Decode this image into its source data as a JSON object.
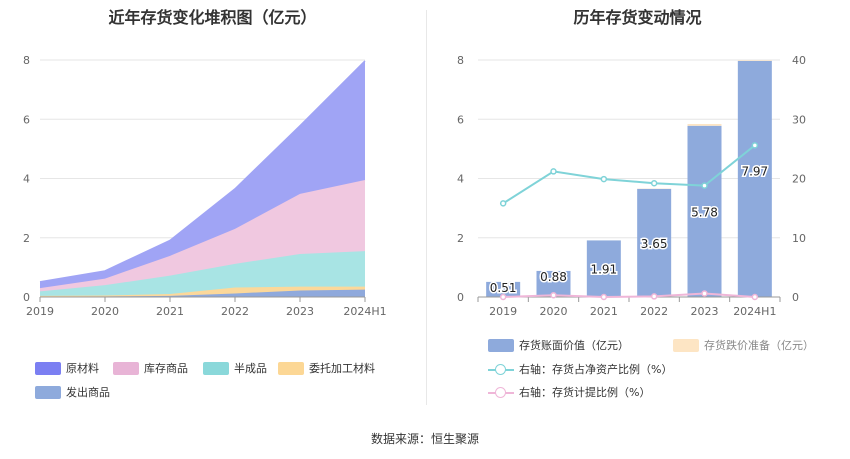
{
  "source_text": "数据来源：恒生聚源",
  "chart_data": [
    {
      "type": "area",
      "title": "近年存货变化堆积图（亿元）",
      "stacked": true,
      "categories": [
        "2019",
        "2020",
        "2021",
        "2022",
        "2023",
        "2024H1"
      ],
      "yticks": [
        "0",
        "2",
        "4",
        "6",
        "8"
      ],
      "ylim": [
        0,
        8
      ],
      "legend_position": "bottom",
      "series": [
        {
          "name": "发出商品",
          "color": "#8fa9dc",
          "values": [
            0.02,
            0.02,
            0.04,
            0.12,
            0.22,
            0.25
          ]
        },
        {
          "name": "委托加工材料",
          "color": "#fcd89a",
          "values": [
            0.02,
            0.03,
            0.06,
            0.2,
            0.13,
            0.1
          ]
        },
        {
          "name": "半成品",
          "color": "#a8e4e4",
          "values": [
            0.15,
            0.35,
            0.62,
            0.8,
            1.1,
            1.2
          ]
        },
        {
          "name": "库存商品",
          "color": "#f0c8e0",
          "values": [
            0.11,
            0.22,
            0.67,
            1.18,
            2.03,
            2.4
          ]
        },
        {
          "name": "原材料",
          "color": "#a0a4f5",
          "values": [
            0.21,
            0.26,
            0.52,
            1.35,
            2.3,
            4.02
          ]
        }
      ],
      "legend_colors": {
        "原材料": "#7b7ff2",
        "库存商品": "#e8b4d6",
        "半成品": "#8ad8da",
        "委托加工材料": "#fcd795",
        "发出商品": "#8eaadc"
      }
    },
    {
      "type": "bar+line",
      "title": "历年存货变动情况",
      "categories": [
        "2019",
        "2020",
        "2021",
        "2022",
        "2023",
        "2024H1"
      ],
      "yticks_left": [
        "0",
        "2",
        "4",
        "6",
        "8"
      ],
      "ylim_left": [
        0,
        8
      ],
      "yticks_right": [
        "0",
        "10",
        "20",
        "30",
        "40"
      ],
      "ylim_right": [
        0,
        40
      ],
      "bars": [
        {
          "name": "存货账面价值（亿元）",
          "color": "#8eaadc",
          "values": [
            0.51,
            0.88,
            1.91,
            3.65,
            5.78,
            7.97
          ],
          "labels": [
            "0.51",
            "0.88",
            "1.91",
            "3.65",
            "5.78",
            "7.97"
          ]
        },
        {
          "name": "存货跌价准备（亿元）",
          "color": "#fde5c4",
          "values": [
            0.0,
            0.0,
            0.0,
            0.01,
            0.06,
            0.02
          ]
        }
      ],
      "lines": [
        {
          "name": "右轴：存货占净资产比例（%）",
          "color": "#7fd3d8",
          "values": [
            15.8,
            21.2,
            19.9,
            19.2,
            18.8,
            25.6
          ]
        },
        {
          "name": "右轴：存货计提比例（%）",
          "color": "#efb6d8",
          "values": [
            0.0,
            0.3,
            0.0,
            0.1,
            0.6,
            0.0
          ]
        }
      ]
    }
  ]
}
